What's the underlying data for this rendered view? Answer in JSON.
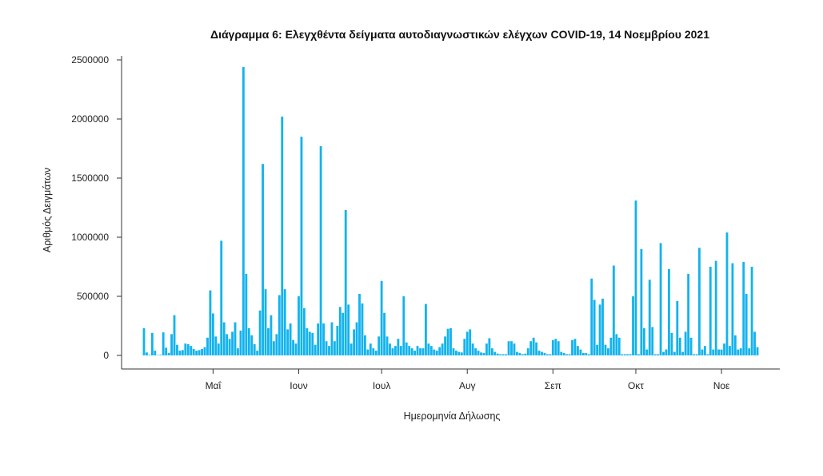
{
  "colors": {
    "bar": "#12b3ee",
    "axis": "#333333",
    "text": "#222222"
  },
  "chart_data": {
    "type": "bar",
    "title": "Διάγραμμα 6: Ελεγχθέντα δείγματα αυτοδιαγνωστικών ελέγχων COVID-19, 14 Νοεμβρίου 2021",
    "xlabel": "Ημερομηνία Δήλωσης",
    "ylabel": "Αριθμός Δειγμάτων",
    "x_start_date": "2021-04-06",
    "x_end_date": "2021-11-14",
    "x_tick_dates": [
      "2021-05-01",
      "2021-06-01",
      "2021-07-01",
      "2021-08-01",
      "2021-09-01",
      "2021-10-01",
      "2021-11-01"
    ],
    "x_tick_labels": [
      "Μαΐ",
      "Ιουν",
      "Ιουλ",
      "Αυγ",
      "Σεπ",
      "Οκτ",
      "Νοε"
    ],
    "y_ticks": [
      0,
      500000,
      1000000,
      1500000,
      2000000,
      2500000
    ],
    "y_tick_labels": [
      "0",
      "500000",
      "1000000",
      "1500000",
      "2000000",
      "2500000"
    ],
    "ylim": [
      0,
      2500000
    ],
    "grid": false,
    "legend": "none",
    "values": [
      230000,
      25000,
      5000,
      190000,
      40000,
      3000,
      5000,
      195000,
      65000,
      20000,
      180000,
      340000,
      90000,
      40000,
      45000,
      100000,
      95000,
      80000,
      55000,
      40000,
      45000,
      55000,
      70000,
      150000,
      550000,
      355000,
      160000,
      100000,
      970000,
      280000,
      180000,
      140000,
      200000,
      280000,
      60000,
      210000,
      2440000,
      690000,
      230000,
      170000,
      95000,
      40000,
      380000,
      1620000,
      560000,
      230000,
      340000,
      120000,
      180000,
      510000,
      2020000,
      560000,
      220000,
      270000,
      130000,
      100000,
      500000,
      1850000,
      400000,
      230000,
      200000,
      190000,
      90000,
      270000,
      1770000,
      270000,
      120000,
      80000,
      280000,
      120000,
      250000,
      410000,
      360000,
      1230000,
      430000,
      100000,
      220000,
      280000,
      520000,
      440000,
      170000,
      50000,
      100000,
      60000,
      40000,
      160000,
      630000,
      360000,
      160000,
      100000,
      60000,
      80000,
      140000,
      80000,
      500000,
      110000,
      80000,
      60000,
      40000,
      80000,
      60000,
      60000,
      435000,
      100000,
      80000,
      50000,
      40000,
      70000,
      100000,
      160000,
      225000,
      230000,
      60000,
      40000,
      30000,
      25000,
      140000,
      200000,
      220000,
      100000,
      60000,
      40000,
      25000,
      20000,
      100000,
      145000,
      60000,
      30000,
      15000,
      10000,
      10000,
      10000,
      120000,
      120000,
      100000,
      30000,
      20000,
      10000,
      15000,
      60000,
      120000,
      150000,
      110000,
      40000,
      30000,
      20000,
      10000,
      10000,
      130000,
      140000,
      120000,
      30000,
      20000,
      10000,
      10000,
      130000,
      140000,
      80000,
      50000,
      20000,
      20000,
      10000,
      650000,
      470000,
      90000,
      430000,
      480000,
      90000,
      60000,
      150000,
      760000,
      180000,
      150000,
      10000,
      10000,
      10000,
      10000,
      500000,
      1310000,
      10000,
      900000,
      230000,
      50000,
      640000,
      240000,
      10000,
      10000,
      950000,
      30000,
      50000,
      730000,
      190000,
      30000,
      460000,
      150000,
      30000,
      200000,
      690000,
      150000,
      10000,
      10000,
      910000,
      50000,
      80000,
      10000,
      750000,
      50000,
      800000,
      50000,
      50000,
      100000,
      1040000,
      80000,
      780000,
      170000,
      50000,
      60000,
      790000,
      520000,
      60000,
      750000,
      200000,
      70000
    ]
  }
}
